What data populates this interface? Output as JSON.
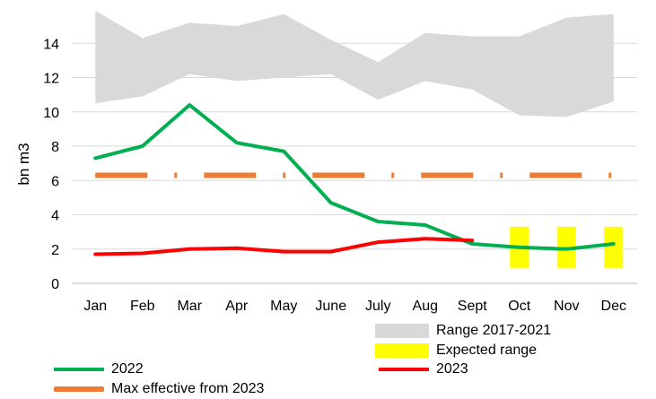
{
  "chart_data": {
    "type": "line",
    "title": "",
    "xlabel": "",
    "ylabel": "bn m3",
    "ylim": [
      0,
      16
    ],
    "yticks": [
      0,
      2,
      4,
      6,
      8,
      10,
      12,
      14
    ],
    "grid": true,
    "categories": [
      "Jan",
      "Feb",
      "Mar",
      "Apr",
      "May",
      "June",
      "July",
      "Aug",
      "Sept",
      "Oct",
      "Nov",
      "Dec"
    ],
    "range_2017_2021": {
      "name": "Range 2017-2021",
      "color": "#d9d9d9",
      "low": [
        10.5,
        10.9,
        12.2,
        11.8,
        12.0,
        12.2,
        10.7,
        11.8,
        11.3,
        9.8,
        9.7,
        10.6
      ],
      "high": [
        15.9,
        14.3,
        15.2,
        15.0,
        15.7,
        14.2,
        12.9,
        14.6,
        14.4,
        14.4,
        15.5,
        15.7
      ]
    },
    "expected_range": {
      "name": "Expected range",
      "color": "#ffff00",
      "categories": [
        "Oct",
        "Nov",
        "Dec"
      ],
      "low": [
        0.9,
        0.9,
        0.9
      ],
      "high": [
        3.3,
        3.3,
        3.3
      ]
    },
    "series": [
      {
        "name": "2022",
        "color": "#00b050",
        "values": [
          7.3,
          8.0,
          10.4,
          8.2,
          7.7,
          4.7,
          3.6,
          3.4,
          2.3,
          2.1,
          2.0,
          2.3
        ]
      },
      {
        "name": "2023",
        "color": "#ff0000",
        "values": [
          1.7,
          1.75,
          2.0,
          2.05,
          1.85,
          1.85,
          2.4,
          2.6,
          2.5,
          null,
          null,
          null
        ]
      }
    ],
    "max_effective": {
      "name": "Max effective from 2023",
      "color": "#ed7d31",
      "value": 6.3
    }
  },
  "legend": {
    "range": "Range 2017-2021",
    "expected": "Expected range",
    "s2022": "2022",
    "s2023": "2023",
    "maxeff": "Max effective from 2023"
  }
}
